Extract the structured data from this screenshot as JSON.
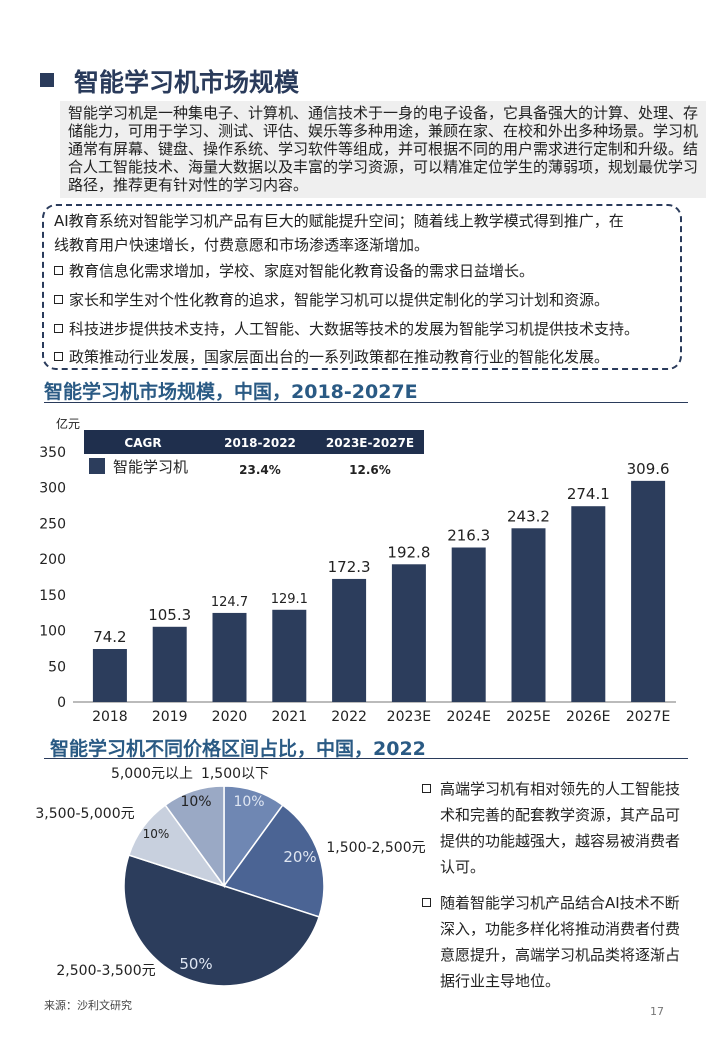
{
  "page": {
    "title": "智能学习机市场规模",
    "intro": "智能学习机是一种集电子、计算机、通信技术于一身的电子设备，它具备强大的计算、处理、存储能力，可用于学习、测试、评估、娱乐等多种用途，兼顾在家、在校和外出多种场景。学习机通常有屏幕、键盘、操作系统、学习软件等组成，并可根据不同的用户需求进行定制和升级。结合人工智能技术、海量大数据以及丰富的学习资源，可以精准定位学生的薄弱项，规划最优学习路径，推荐更有针对性的学习内容。",
    "drivers": {
      "lead_line1": "AI教育系统对智能学习机产品有巨大的赋能提升空间；随着线上教学模式得到推广，在",
      "lead_line2": "线教育用户快速增长，付费意愿和市场渗透率逐渐增加。",
      "items": [
        "教育信息化需求增加，学校、家庭对智能化教育设备的需求日益增长。",
        "家长和学生对个性化教育的追求，智能学习机可以提供定制化的学习计划和资源。",
        "科技进步提供技术支持，人工智能、大数据等技术的发展为智能学习机提供技术支持。",
        "政策推动行业发展，国家层面出台的一系列政策都在推动教育行业的智能化发展。"
      ]
    },
    "right_bullets": [
      "高端学习机有相对领先的人工智能技术和完善的配套教学资源，其产品可提供的功能越强大，越容易被消费者认可。",
      "随着智能学习机产品结合AI技术不断深入，功能多样化将推动消费者付费意愿提升，高端学习机品类将逐渐占据行业主导地位。"
    ],
    "source": "来源：沙利文研究",
    "page_number": "17"
  },
  "chart_data": [
    {
      "type": "bar",
      "title": "智能学习机市场规模，中国，2018-2027E",
      "ylabel": "亿元",
      "ylim": [
        0,
        350
      ],
      "yticks": [
        0,
        50,
        100,
        150,
        200,
        250,
        300,
        350
      ],
      "categories": [
        "2018",
        "2019",
        "2020",
        "2021",
        "2022",
        "2023E",
        "2024E",
        "2025E",
        "2026E",
        "2027E"
      ],
      "series": [
        {
          "name": "智能学习机",
          "values": [
            74.2,
            105.3,
            124.7,
            129.1,
            172.3,
            192.8,
            216.3,
            243.2,
            274.1,
            309.6
          ]
        }
      ],
      "value_labels": [
        "74.2",
        "105.3",
        "124.7",
        "129.1",
        "172.3",
        "192.8",
        "216.3",
        "243.2",
        "274.1",
        "309.6"
      ],
      "cagr_table": {
        "headers": [
          "CAGR",
          "2018-2022",
          "2023E-2027E"
        ],
        "values": [
          "23.4%",
          "12.6%"
        ]
      },
      "legend_position": "top-left",
      "grid": false,
      "colors": {
        "bar": "#2c3d5c",
        "header": "#1f2f4d"
      }
    },
    {
      "type": "pie",
      "title": "智能学习机不同价格区间占比，中国，2022",
      "slices": [
        {
          "label": "1,500以下",
          "value": 10,
          "pct_label": "10%",
          "color": "#6f87b3"
        },
        {
          "label": "1,500-2,500元",
          "value": 20,
          "pct_label": "20%",
          "color": "#4b6494"
        },
        {
          "label": "2,500-3,500元",
          "value": 50,
          "pct_label": "50%",
          "color": "#2c3d5c"
        },
        {
          "label": "3,500-5,000元",
          "value": 10,
          "pct_label": "10%",
          "color": "#c8d0de"
        },
        {
          "label": "5,000元以上",
          "value": 10,
          "pct_label": "10%",
          "color": "#9aa9c5"
        }
      ]
    }
  ]
}
